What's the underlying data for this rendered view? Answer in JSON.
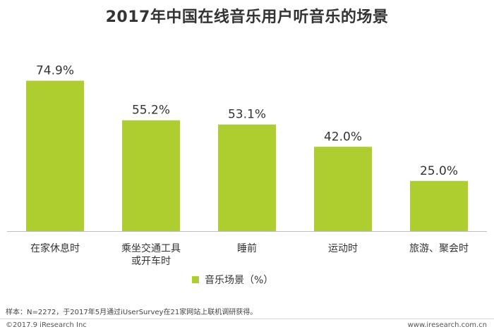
{
  "chart_data": {
    "type": "bar",
    "title": "2017年中国在线音乐用户听音乐的场景",
    "categories": [
      "在家休息时",
      "乘坐交通工具或开车时",
      "睡前",
      "运动时",
      "旅游、聚会时"
    ],
    "category_lines": [
      [
        "在家休息时"
      ],
      [
        "乘坐交通工具",
        "或开车时"
      ],
      [
        "睡前"
      ],
      [
        "运动时"
      ],
      [
        "旅游、聚会时"
      ]
    ],
    "series": [
      {
        "name": "音乐场景（%）",
        "values": [
          74.9,
          55.2,
          53.1,
          42.0,
          25.0
        ]
      }
    ],
    "data_labels": [
      "74.9%",
      "55.2%",
      "53.1%",
      "42.0%",
      "25.0%"
    ],
    "ylim": [
      0,
      100
    ],
    "grid": false,
    "legend_position": "bottom",
    "bar_color": "#aecd2e"
  },
  "legend": {
    "label": "音乐场景（%）"
  },
  "footer": {
    "source": "样本：N=2272，于2017年5月通过iUserSurvey在21家网站上联机调研获得。",
    "copyright": "©2017.9 iResearch Inc",
    "website": "www.iresearch.com.cn"
  }
}
